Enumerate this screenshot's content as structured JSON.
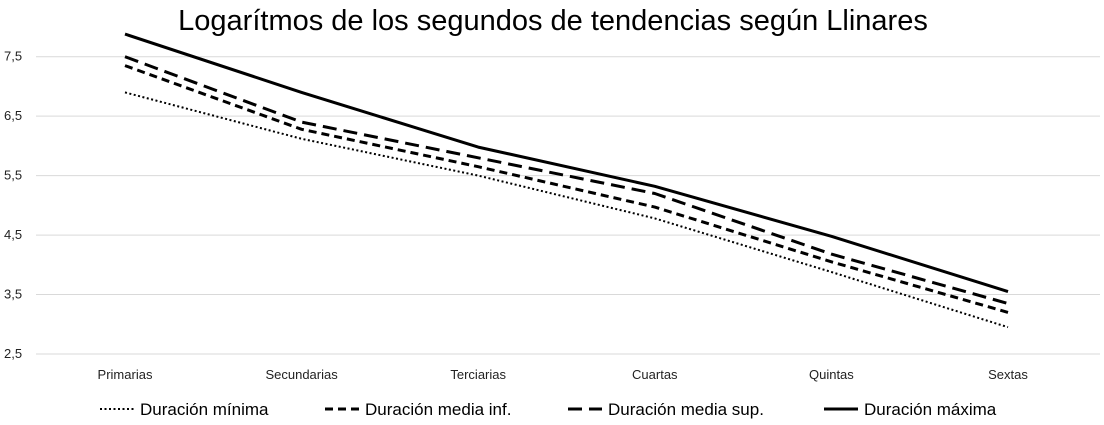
{
  "chart_data": {
    "type": "line",
    "title": "Logarítmos de los segundos de tendencias según Llinares",
    "xlabel": "",
    "ylabel": "",
    "categories": [
      "Primarias",
      "Secundarias",
      "Terciarias",
      "Cuartas",
      "Quintas",
      "Sextas"
    ],
    "ylim": [
      2.5,
      8.0
    ],
    "yticks": [
      "2,5",
      "3,5",
      "4,5",
      "5,5",
      "6,5",
      "7,5"
    ],
    "ytick_values": [
      2.5,
      3.5,
      4.5,
      5.5,
      6.5,
      7.5
    ],
    "grid": true,
    "legend_position": "bottom",
    "series": [
      {
        "name": "Duración mínima",
        "style": "dotted",
        "color": "#000000",
        "values": [
          6.9,
          6.12,
          5.5,
          4.78,
          3.88,
          2.95
        ]
      },
      {
        "name": "Duración media inf.",
        "style": "short-dash",
        "color": "#000000",
        "values": [
          7.35,
          6.28,
          5.65,
          4.97,
          4.05,
          3.2
        ]
      },
      {
        "name": "Duración media sup.",
        "style": "long-dash",
        "color": "#000000",
        "values": [
          7.5,
          6.4,
          5.8,
          5.2,
          4.18,
          3.35
        ]
      },
      {
        "name": "Duración máxima",
        "style": "solid",
        "color": "#000000",
        "values": [
          7.88,
          6.9,
          5.98,
          5.32,
          4.48,
          3.55
        ]
      }
    ]
  }
}
